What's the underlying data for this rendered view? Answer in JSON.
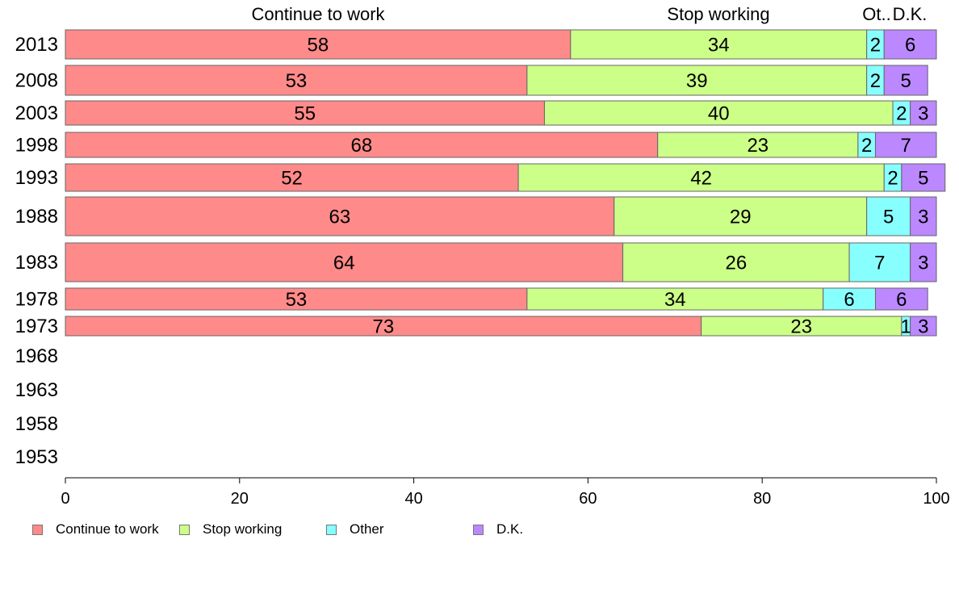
{
  "chart_data": {
    "type": "bar",
    "orientation": "horizontal",
    "stacked": true,
    "categories": [
      "2013",
      "2008",
      "2003",
      "1998",
      "1993",
      "1988",
      "1983",
      "1978",
      "1973",
      "1968",
      "1963",
      "1958",
      "1953"
    ],
    "series": [
      {
        "name": "Continue to work",
        "color": "#ff8a8a",
        "values": [
          58,
          53,
          55,
          68,
          52,
          63,
          64,
          53,
          73,
          null,
          null,
          null,
          null
        ]
      },
      {
        "name": "Stop working",
        "color": "#ccff88",
        "values": [
          34,
          39,
          40,
          23,
          42,
          29,
          26,
          34,
          23,
          null,
          null,
          null,
          null
        ]
      },
      {
        "name": "Other",
        "color": "#88ffff",
        "values": [
          2,
          2,
          2,
          2,
          2,
          5,
          7,
          6,
          1,
          null,
          null,
          null,
          null
        ]
      },
      {
        "name": "D.K.",
        "color": "#bb88ff",
        "values": [
          6,
          5,
          3,
          7,
          5,
          3,
          3,
          6,
          3,
          null,
          null,
          null,
          null
        ]
      }
    ],
    "column_headers": [
      "Continue to work",
      "Stop working",
      "Ot..",
      "D.K."
    ],
    "xticks": [
      "0",
      "20",
      "40",
      "60",
      "80",
      "100"
    ],
    "xlim": [
      0,
      100
    ],
    "title": "",
    "xlabel": "",
    "ylabel": "",
    "grid": false,
    "legend_position": "bottom"
  }
}
